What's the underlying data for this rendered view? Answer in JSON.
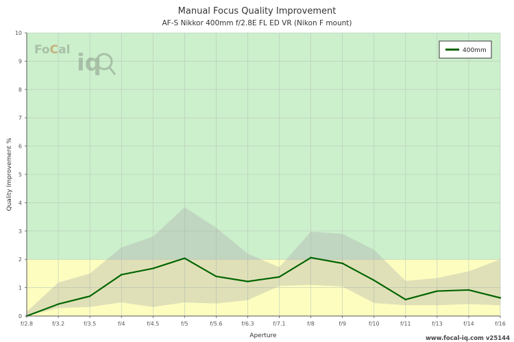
{
  "chart_data": {
    "type": "line",
    "title": "Manual Focus Quality Improvement",
    "subtitle": "AF-S Nikkor 400mm f/2.8E FL ED VR (Nikon F mount)",
    "xlabel": "Aperture",
    "ylabel": "Quality Improvement %",
    "ylim": [
      0,
      10
    ],
    "yticks": [
      "0",
      "1",
      "2",
      "3",
      "4",
      "5",
      "6",
      "7",
      "8",
      "9",
      "10"
    ],
    "categories": [
      "f/2.8",
      "f/3.2",
      "f/3.5",
      "f/4",
      "f/4.5",
      "f/5",
      "f/5.6",
      "f/6.3",
      "f/7.1",
      "f/8",
      "f/9",
      "f/10",
      "f/11",
      "f/13",
      "f/14",
      "f/16"
    ],
    "series": [
      {
        "name": "400mm",
        "color": "#006400",
        "values": [
          0,
          0.42,
          0.7,
          1.46,
          1.68,
          2.04,
          1.4,
          1.22,
          1.38,
          2.06,
          1.86,
          1.26,
          0.58,
          0.88,
          0.92,
          0.64
        ]
      }
    ],
    "range_band": {
      "upper": [
        0.15,
        1.18,
        1.5,
        2.42,
        2.8,
        3.84,
        3.12,
        2.2,
        1.72,
        2.98,
        2.9,
        2.34,
        1.24,
        1.34,
        1.58,
        2.0
      ],
      "lower": [
        0,
        0.28,
        0.32,
        0.48,
        0.32,
        0.48,
        0.44,
        0.56,
        1.06,
        1.1,
        1.04,
        0.46,
        0.38,
        0.38,
        0.42,
        0.38
      ],
      "color": "#a8a8a8"
    },
    "zones": [
      {
        "from": 2,
        "to": 10,
        "color": "#ccefcc"
      },
      {
        "from": 0,
        "to": 2,
        "color": "#fdfdc0"
      }
    ],
    "grid": true,
    "legend_position": "top-right"
  },
  "logo": {
    "text_left": "Fo",
    "text_c": "C",
    "text_right": "al",
    "text_iq": "iq"
  },
  "footer": {
    "url": "www.focal-iq.com",
    "version": "v25144"
  }
}
